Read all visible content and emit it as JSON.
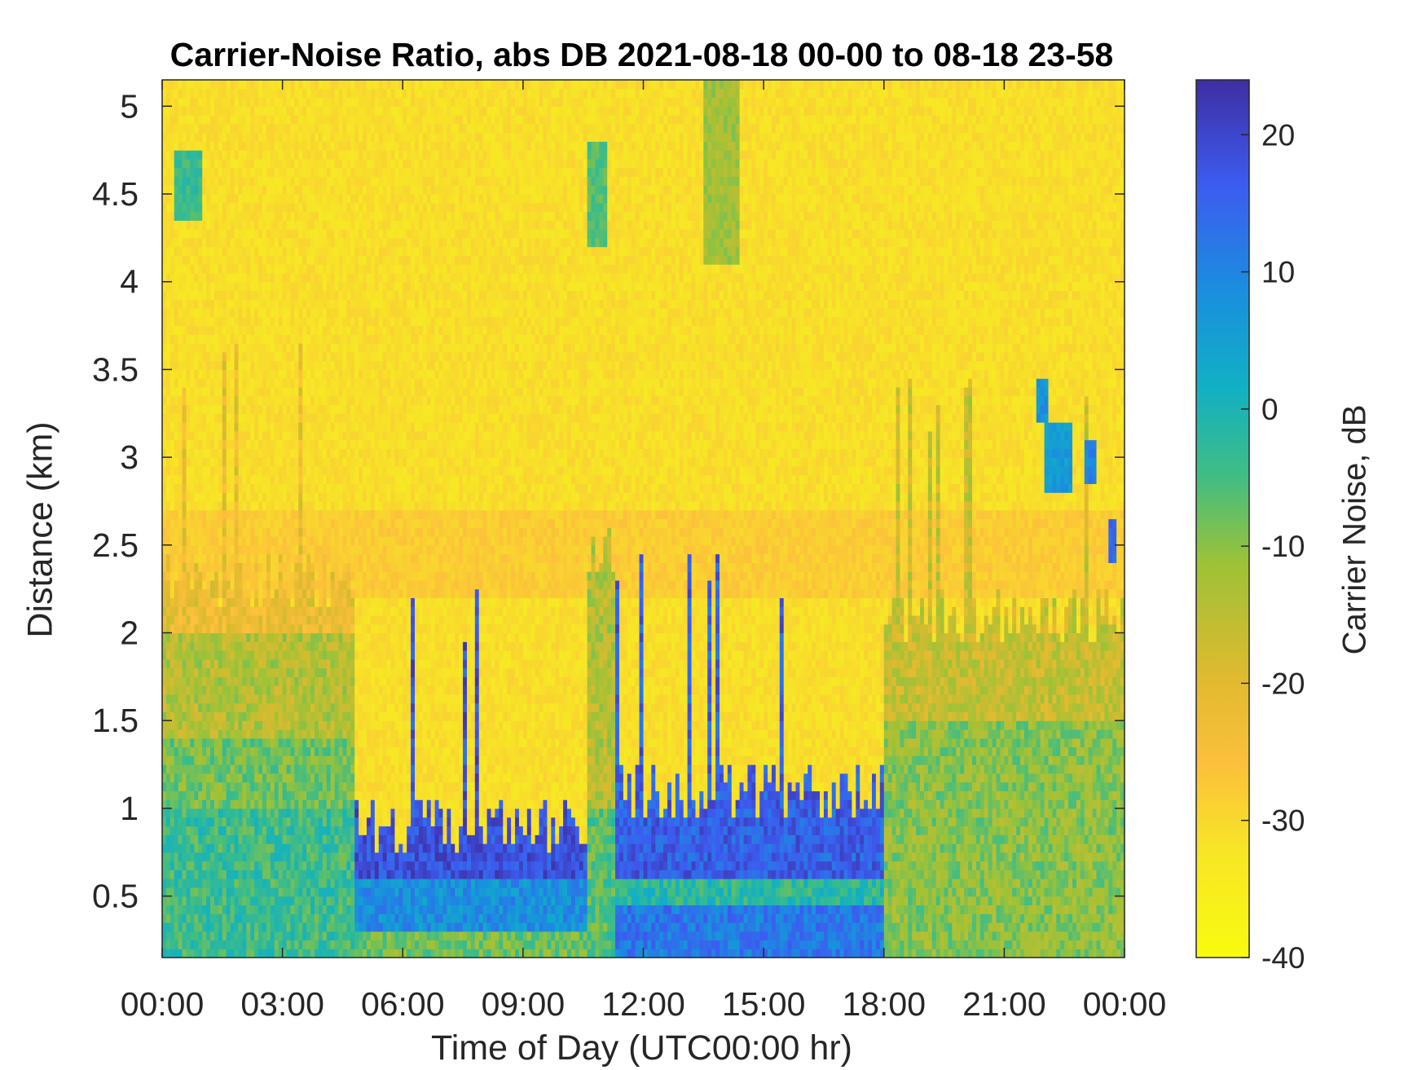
{
  "chart_data": {
    "type": "heatmap",
    "title": "Carrier-Noise Ratio, abs DB 2021-08-18 00-00 to 08-18 23-58",
    "xlabel": "Time of Day (UTC00:00 hr)",
    "ylabel": "Distance (km)",
    "colorbar_label": "Carrier Noise, dB",
    "x_tick_labels": [
      "00:00",
      "03:00",
      "06:00",
      "09:00",
      "12:00",
      "15:00",
      "18:00",
      "21:00",
      "00:00"
    ],
    "x_ticks_hours": [
      0,
      3,
      6,
      9,
      12,
      15,
      18,
      21,
      24
    ],
    "xlim_hours": [
      0,
      24
    ],
    "y_tick_labels": [
      "0.5",
      "1",
      "1.5",
      "2",
      "2.5",
      "3",
      "3.5",
      "4",
      "4.5",
      "5"
    ],
    "y_ticks": [
      0.5,
      1,
      1.5,
      2,
      2.5,
      3,
      3.5,
      4,
      4.5,
      5
    ],
    "ylim": [
      0.15,
      5.15
    ],
    "colorbar_tick_labels": [
      "20",
      "10",
      "0",
      "-10",
      "-20",
      "-30",
      "-40"
    ],
    "colorbar_ticks": [
      20,
      10,
      0,
      -10,
      -20,
      -30,
      -40
    ],
    "clim": [
      -40,
      24
    ],
    "colormap": "parula",
    "grid": false,
    "description_of_field": {
      "background_dB": -31,
      "boundary_layer": [
        {
          "hours": [
            0,
            4.8
          ],
          "top_km": 2.3,
          "values_dB": {
            "below_1km": -4,
            "1_to_1.4km": -8,
            "1.4_to_2km": -14,
            "2_to_2.3km": -22
          }
        },
        {
          "hours": [
            4.8,
            10.6
          ],
          "top_km": 0.9,
          "values_dB": {
            "0.3_to_0.6km": 8,
            "0.6_to_0.85km": 18
          }
        },
        {
          "hours": [
            10.6,
            11.3
          ],
          "top_km": 2.5,
          "values_dB": {
            "below_1km": -6
          }
        },
        {
          "hours": [
            11.3,
            18
          ],
          "top_km": 1.1,
          "values_dB": {
            "0.2_to_0.45km": 12,
            "0.6_to_1km": 16
          }
        },
        {
          "hours": [
            18,
            24
          ],
          "top_km": 2.1,
          "values_dB": {
            "below_1.5km": -10,
            "1.5_to_2.1km": -16
          }
        }
      ],
      "cloud_features": [
        {
          "hours": [
            0.35,
            1.0
          ],
          "km": [
            4.35,
            4.75
          ],
          "dB": -4
        },
        {
          "hours": [
            10.6,
            11.1
          ],
          "km": [
            4.2,
            4.8
          ],
          "dB": -6
        },
        {
          "hours": [
            13.5,
            14.4
          ],
          "km": [
            4.1,
            5.15
          ],
          "dB": -12
        },
        {
          "hours": [
            21.8,
            22.1
          ],
          "km": [
            3.2,
            3.45
          ],
          "dB": 8
        },
        {
          "hours": [
            22.0,
            22.7
          ],
          "km": [
            2.8,
            3.2
          ],
          "dB": 6
        },
        {
          "hours": [
            23.0,
            23.3
          ],
          "km": [
            2.85,
            3.1
          ],
          "dB": 10
        },
        {
          "hours": [
            23.6,
            23.8
          ],
          "km": [
            2.4,
            2.65
          ],
          "dB": 14
        }
      ]
    }
  }
}
